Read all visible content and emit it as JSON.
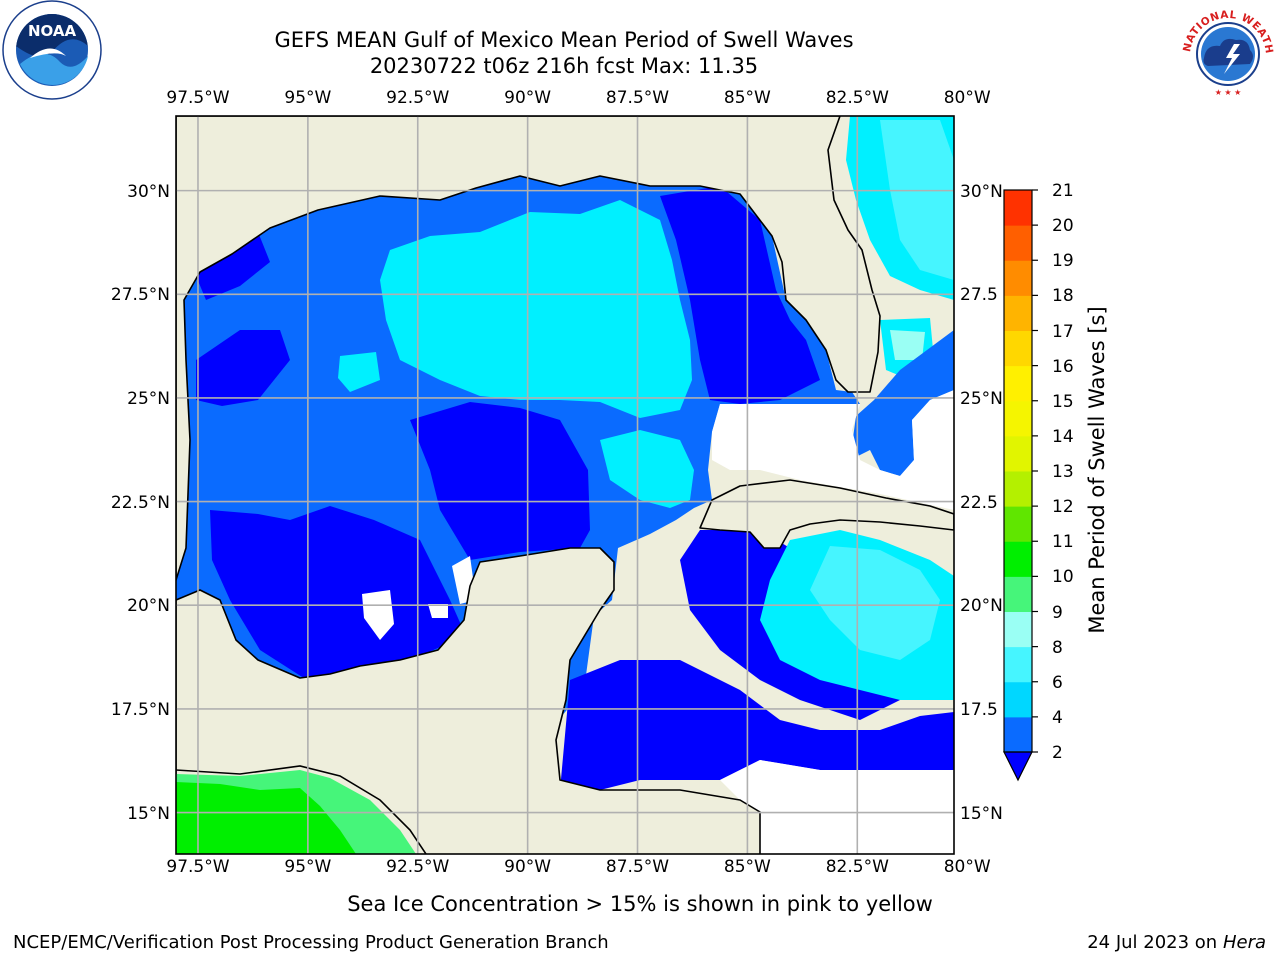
{
  "header": {
    "title_line1": "GEFS MEAN Gulf of Mexico Mean Period of Swell Waves",
    "title_line2": "20230722 t06z 216h fcst   Max: 11.35"
  },
  "logos": {
    "left": "NOAA",
    "right_text": "NATIONAL WEATHER SERVICE"
  },
  "map": {
    "lon_labels": [
      "97.5°W",
      "95°W",
      "92.5°W",
      "90°W",
      "87.5°W",
      "85°W",
      "82.5°W",
      "80°W"
    ],
    "lat_labels_left": [
      "30°N",
      "27.5°N",
      "25°N",
      "22.5°N",
      "20°N",
      "17.5°N",
      "15°N"
    ],
    "lat_labels_right": [
      "30°N",
      "27.5",
      "25°N",
      "22.5",
      "20°N",
      "17.5",
      "15°N"
    ],
    "lon_values": [
      -97.5,
      -95,
      -92.5,
      -90,
      -87.5,
      -85,
      -82.5,
      -80
    ],
    "lat_values": [
      30,
      27.5,
      25,
      22.5,
      20,
      17.5,
      15
    ],
    "extent": {
      "lon": [
        -98,
        -80.3
      ],
      "lat": [
        14.0,
        31.8
      ]
    },
    "colors": {
      "land": "#eeeedc",
      "grid": "#b0b0b0",
      "no_data": "#ffffff"
    }
  },
  "colorbar": {
    "title": "Mean Period of Swell Waves [s]",
    "ticks": [
      "2",
      "4",
      "6",
      "8",
      "9",
      "10",
      "11",
      "12",
      "13",
      "14",
      "15",
      "16",
      "17",
      "18",
      "19",
      "20",
      "21"
    ],
    "colors": [
      "#0a6bff",
      "#00d7ff",
      "#46f5ff",
      "#9afff4",
      "#46f57a",
      "#00ef00",
      "#60e600",
      "#b4f000",
      "#e1f500",
      "#f5f500",
      "#fff000",
      "#ffd700",
      "#ffb400",
      "#ff8c00",
      "#ff5f00",
      "#ff3200",
      "#ff0000"
    ],
    "extend_color": "#0000ff"
  },
  "caption": "Sea Ice Concentration > 15% is shown in pink to yellow",
  "footer": {
    "left": "NCEP/EMC/Verification Post Processing Product Generation Branch",
    "right_prefix": "24 Jul 2023 on ",
    "right_host": "Hera"
  }
}
